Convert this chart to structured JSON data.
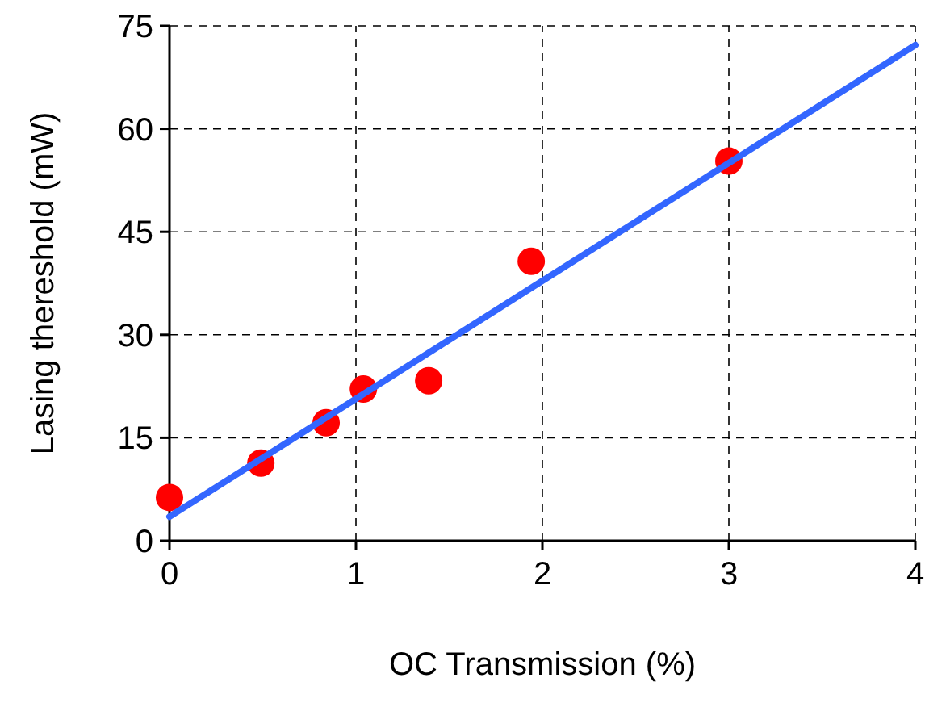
{
  "chart_data": {
    "type": "scatter",
    "xlabel": "OC Transmission (%)",
    "ylabel": "Lasing thereshold (mW)",
    "xlim": [
      0,
      4
    ],
    "xticks": [
      0,
      1,
      2,
      3,
      4
    ],
    "ylim": [
      0,
      75
    ],
    "yticks": [
      0,
      15,
      30,
      45,
      60,
      75
    ],
    "grid": true,
    "series": [
      {
        "marker": "circle",
        "color": "#ff0000",
        "x": [
          0,
          0.49,
          0.84,
          1.04,
          1.39,
          1.94,
          3.0
        ],
        "values": [
          6.3,
          11.3,
          17.2,
          22.1,
          23.3,
          40.7,
          55.3
        ]
      },
      {
        "type": "line",
        "color": "#3366ff",
        "x": [
          0,
          4
        ],
        "values": [
          3.5,
          72.2
        ]
      }
    ]
  }
}
